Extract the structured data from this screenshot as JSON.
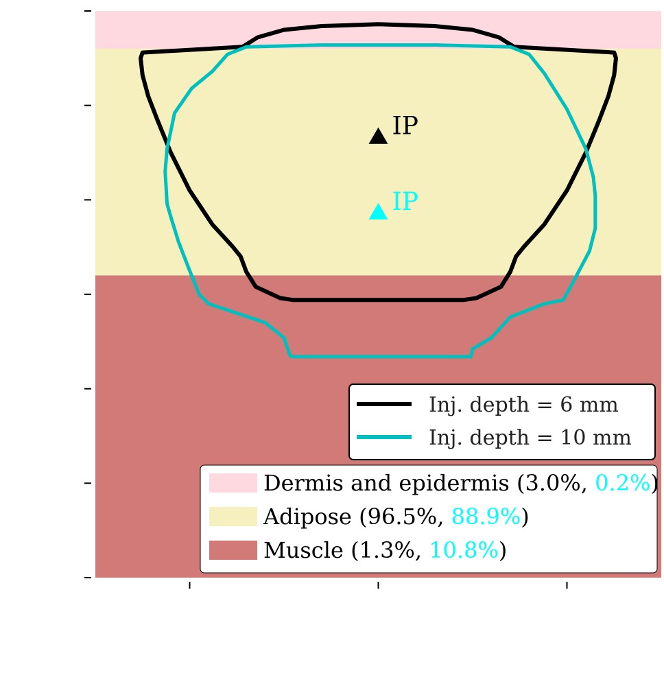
{
  "chart_data": {
    "type": "area",
    "title": "",
    "xlabel": "",
    "ylabel": "",
    "xlim": [
      -15,
      15
    ],
    "ylim": [
      -24,
      6
    ],
    "grid": false,
    "layers": [
      {
        "name": "Dermis and epidermis",
        "y_top": 6,
        "y_bottom": 4,
        "color": "#ffd9e0",
        "pct_6mm": "3.0%",
        "pct_10mm": "0.2%"
      },
      {
        "name": "Adipose",
        "y_top": 4,
        "y_bottom": -8,
        "color": "#f5f0bd",
        "pct_6mm": "96.5%",
        "pct_10mm": "88.9%"
      },
      {
        "name": "Muscle",
        "y_top": -8,
        "y_bottom": -24,
        "color": "#d17a78",
        "pct_6mm": "1.3%",
        "pct_10mm": "10.8%"
      }
    ],
    "series": [
      {
        "name": "Inj. depth = 6 mm",
        "color": "#000000",
        "injection_point": [
          0,
          -0.6
        ],
        "injection_label": "IP",
        "x": [
          -7.2,
          -6.4,
          -5,
          -3,
          0,
          3,
          5,
          6.4,
          7.2,
          12.5,
          12.6,
          12.5,
          12.2,
          11.7,
          11,
          10,
          8.8,
          7.7,
          7.3,
          7,
          6.5,
          5.2,
          4.5,
          -4.5,
          -5.2,
          -6.5,
          -7,
          -7.3,
          -7.7,
          -8.8,
          -10,
          -11,
          -11.7,
          -12.2,
          -12.5,
          -12.6,
          -12.5,
          -7.2
        ],
        "y": [
          4.1,
          4.6,
          5,
          5.2,
          5.3,
          5.2,
          5,
          4.6,
          4.1,
          3.8,
          3.5,
          2.6,
          1.5,
          0.2,
          -1.5,
          -3.5,
          -5.3,
          -6.5,
          -7,
          -7.8,
          -8.6,
          -9.2,
          -9.3,
          -9.3,
          -9.2,
          -8.6,
          -7.8,
          -7,
          -6.5,
          -5.3,
          -3.5,
          -1.5,
          0.2,
          1.5,
          2.6,
          3.5,
          3.8,
          4.1
        ]
      },
      {
        "name": "Inj. depth = 10 mm",
        "color": "#00bfbf",
        "injection_point": [
          0,
          -4.6
        ],
        "injection_label": "IP",
        "x": [
          -8,
          -7,
          -3,
          0,
          3,
          7,
          8,
          8.8,
          10,
          11,
          11.4,
          11.5,
          11.5,
          11.2,
          10.3,
          9.8,
          8.8,
          7,
          6,
          5,
          4.9,
          -4.6,
          -4.7,
          -5,
          -6,
          -7.5,
          -9,
          -9.5,
          -10.1,
          -10.6,
          -11,
          -11.2,
          -11.3,
          -11.2,
          -10.8,
          -9.9,
          -8.8,
          -8
        ],
        "y": [
          3.7,
          4.1,
          4.2,
          4.2,
          4.2,
          4.1,
          3.7,
          2.7,
          0.8,
          -1.3,
          -2.8,
          -3.8,
          -5.5,
          -6.7,
          -8.4,
          -9.3,
          -9.5,
          -10.2,
          -11.3,
          -11.9,
          -12.3,
          -12.3,
          -12.2,
          -11.3,
          -10.5,
          -10,
          -9.5,
          -9,
          -7.5,
          -6.2,
          -4.9,
          -4.2,
          -2.5,
          -1.3,
          0.6,
          1.9,
          2.8,
          3.7
        ]
      }
    ]
  }
}
